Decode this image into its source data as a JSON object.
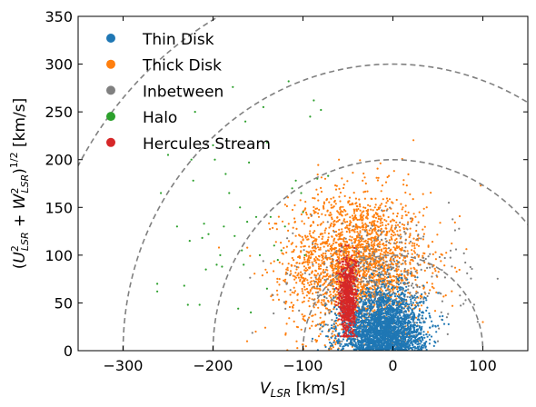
{
  "chart_data": {
    "type": "scatter",
    "title": "",
    "xlabel": "V_LSR [km/s]",
    "ylabel": "(U_LSR^2 + W_LSR^2)^{1/2} [km/s]",
    "xlim": [
      -350,
      150
    ],
    "ylim": [
      0,
      350
    ],
    "x_ticks": [
      -300,
      -200,
      -100,
      0,
      100
    ],
    "x_tick_labels": [
      "−300",
      "−200",
      "−100",
      "0",
      "100"
    ],
    "y_ticks": [
      0,
      50,
      100,
      150,
      200,
      250,
      300,
      350
    ],
    "y_tick_labels": [
      "0",
      "50",
      "100",
      "150",
      "200",
      "250",
      "300",
      "350"
    ],
    "grid": false,
    "legend_position": "top-left",
    "reference_circles": {
      "style": "dashed",
      "color": "#808080",
      "radii_km_s": [
        100,
        200,
        300,
        400
      ]
    },
    "series": [
      {
        "name": "Thin Disk",
        "color": "#1f77b4",
        "distribution": {
          "center_x": -10,
          "center_y": 20,
          "spread_x": 22,
          "spread_y": 22,
          "count": 2600
        },
        "sample_points": [
          [
            -40,
            5
          ],
          [
            -20,
            30
          ],
          [
            0,
            40
          ],
          [
            20,
            15
          ],
          [
            -10,
            60
          ],
          [
            30,
            50
          ],
          [
            -60,
            10
          ],
          [
            10,
            80
          ]
        ]
      },
      {
        "name": "Thick Disk",
        "color": "#ff7f0e",
        "distribution": {
          "center_x": -40,
          "center_y": 90,
          "spread_x": 38,
          "spread_y": 38,
          "count": 2400
        },
        "sample_points": [
          [
            -40,
            120
          ],
          [
            -80,
            80
          ],
          [
            -20,
            150
          ],
          [
            -100,
            60
          ],
          [
            20,
            95
          ],
          [
            -60,
            200
          ],
          [
            -30,
            175
          ],
          [
            100,
            30
          ]
        ]
      },
      {
        "name": "Inbetween",
        "color": "#808080",
        "distribution": {
          "center_x": -20,
          "center_y": 70,
          "spread_x": 45,
          "spread_y": 30,
          "count": 500
        },
        "sample_points": [
          [
            -90,
            10
          ],
          [
            40,
            60
          ],
          [
            -10,
            125
          ],
          [
            60,
            35
          ]
        ]
      },
      {
        "name": "Halo",
        "color": "#2ca02c",
        "points": [
          [
            -262,
            62
          ],
          [
            -262,
            70
          ],
          [
            -258,
            165
          ],
          [
            -232,
            68
          ],
          [
            -228,
            48
          ],
          [
            -226,
            115
          ],
          [
            -224,
            200
          ],
          [
            -220,
            250
          ],
          [
            -215,
            48
          ],
          [
            -212,
            118
          ],
          [
            -210,
            133
          ],
          [
            -205,
            122
          ],
          [
            -200,
            215
          ],
          [
            -198,
            200
          ],
          [
            -196,
            90
          ],
          [
            -192,
            100
          ],
          [
            -190,
            88
          ],
          [
            -188,
            130
          ],
          [
            -186,
            185
          ],
          [
            -182,
            165
          ],
          [
            -178,
            276
          ],
          [
            -176,
            120
          ],
          [
            -172,
            44
          ],
          [
            -170,
            150
          ],
          [
            -168,
            105
          ],
          [
            -166,
            90
          ],
          [
            -164,
            240
          ],
          [
            -162,
            135
          ],
          [
            -158,
            40
          ],
          [
            -152,
            140
          ],
          [
            -148,
            100
          ],
          [
            -144,
            255
          ],
          [
            -140,
            218
          ],
          [
            -136,
            140
          ],
          [
            -132,
            110
          ],
          [
            -128,
            95
          ],
          [
            -124,
            105
          ],
          [
            -120,
            130
          ],
          [
            -116,
            282
          ],
          [
            -112,
            170
          ],
          [
            -108,
            178
          ],
          [
            -102,
            165
          ],
          [
            -100,
            145
          ],
          [
            -98,
            100
          ],
          [
            -92,
            245
          ],
          [
            -88,
            262
          ],
          [
            -84,
            180
          ],
          [
            -80,
            252
          ],
          [
            -72,
            183
          ],
          [
            -222,
            178
          ],
          [
            -240,
            130
          ],
          [
            -250,
            205
          ],
          [
            -208,
            85
          ],
          [
            -185,
            220
          ],
          [
            -160,
            197
          ],
          [
            -140,
            65
          ]
        ]
      },
      {
        "name": "Hercules Stream",
        "color": "#d62728",
        "distribution": {
          "center_x": -50,
          "center_y": 55,
          "spread_x": 5,
          "spread_y": 22,
          "count": 700,
          "x_range": [
            -63,
            -37
          ],
          "y_range": [
            15,
            110
          ]
        },
        "sample_points": [
          [
            -52,
            40
          ],
          [
            -48,
            70
          ],
          [
            -55,
            25
          ],
          [
            -45,
            95
          ]
        ]
      }
    ]
  }
}
